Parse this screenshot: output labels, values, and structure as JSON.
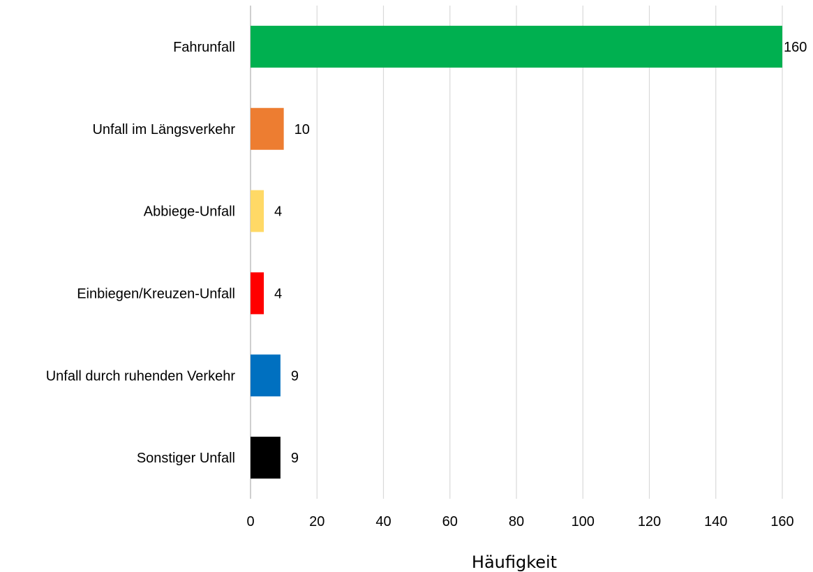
{
  "chart_data": {
    "type": "bar",
    "orientation": "horizontal",
    "categories": [
      "Fahrunfall",
      "Unfall im Längsverkehr",
      "Abbiege-Unfall",
      "Einbiegen/Kreuzen-Unfall",
      "Unfall durch ruhenden Verkehr",
      "Sonstiger Unfall"
    ],
    "values": [
      160,
      10,
      4,
      4,
      9,
      9
    ],
    "colors": [
      "#00b050",
      "#ed7d31",
      "#ffd966",
      "#ff0000",
      "#0070c0",
      "#000000"
    ],
    "data_labels": [
      "160",
      "10",
      "4",
      "4",
      "9",
      "9"
    ],
    "xlabel": "Häufigkeit",
    "ylabel": "",
    "xlim": [
      0,
      160
    ],
    "x_ticks": [
      0,
      20,
      40,
      60,
      80,
      100,
      120,
      140,
      160
    ],
    "x_tick_labels": [
      "0",
      "20",
      "40",
      "60",
      "80",
      "100",
      "120",
      "140",
      "160"
    ],
    "grid": "vertical",
    "gridline_color": "#d9d9d9",
    "axis_line_color": "#bfbfbf",
    "legend": "none"
  }
}
